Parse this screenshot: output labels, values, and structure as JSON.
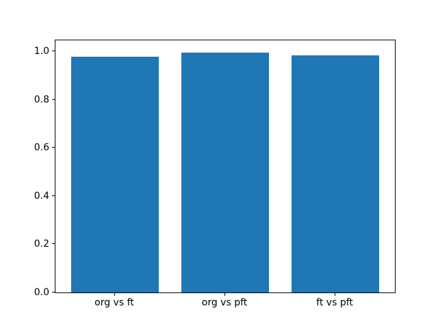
{
  "figure": {
    "background": "#ffffff"
  },
  "chart_data": {
    "type": "bar",
    "title": "",
    "xlabel": "",
    "ylabel": "",
    "categories": [
      "org vs ft",
      "org vs pft",
      "ft vs pft"
    ],
    "values": [
      0.979,
      0.996,
      0.984
    ],
    "bar_color": "#1f77b4",
    "bar_width_fraction": 0.8,
    "ylim": [
      0,
      1.046
    ],
    "ytick_values": [
      0.0,
      0.2,
      0.4,
      0.6,
      0.8,
      1.0
    ],
    "ytick_labels": [
      "0.0",
      "0.2",
      "0.4",
      "0.6",
      "0.8",
      "1.0"
    ],
    "grid": false,
    "legend": "none",
    "spine_color": "#000000",
    "text_color": "#000000"
  }
}
